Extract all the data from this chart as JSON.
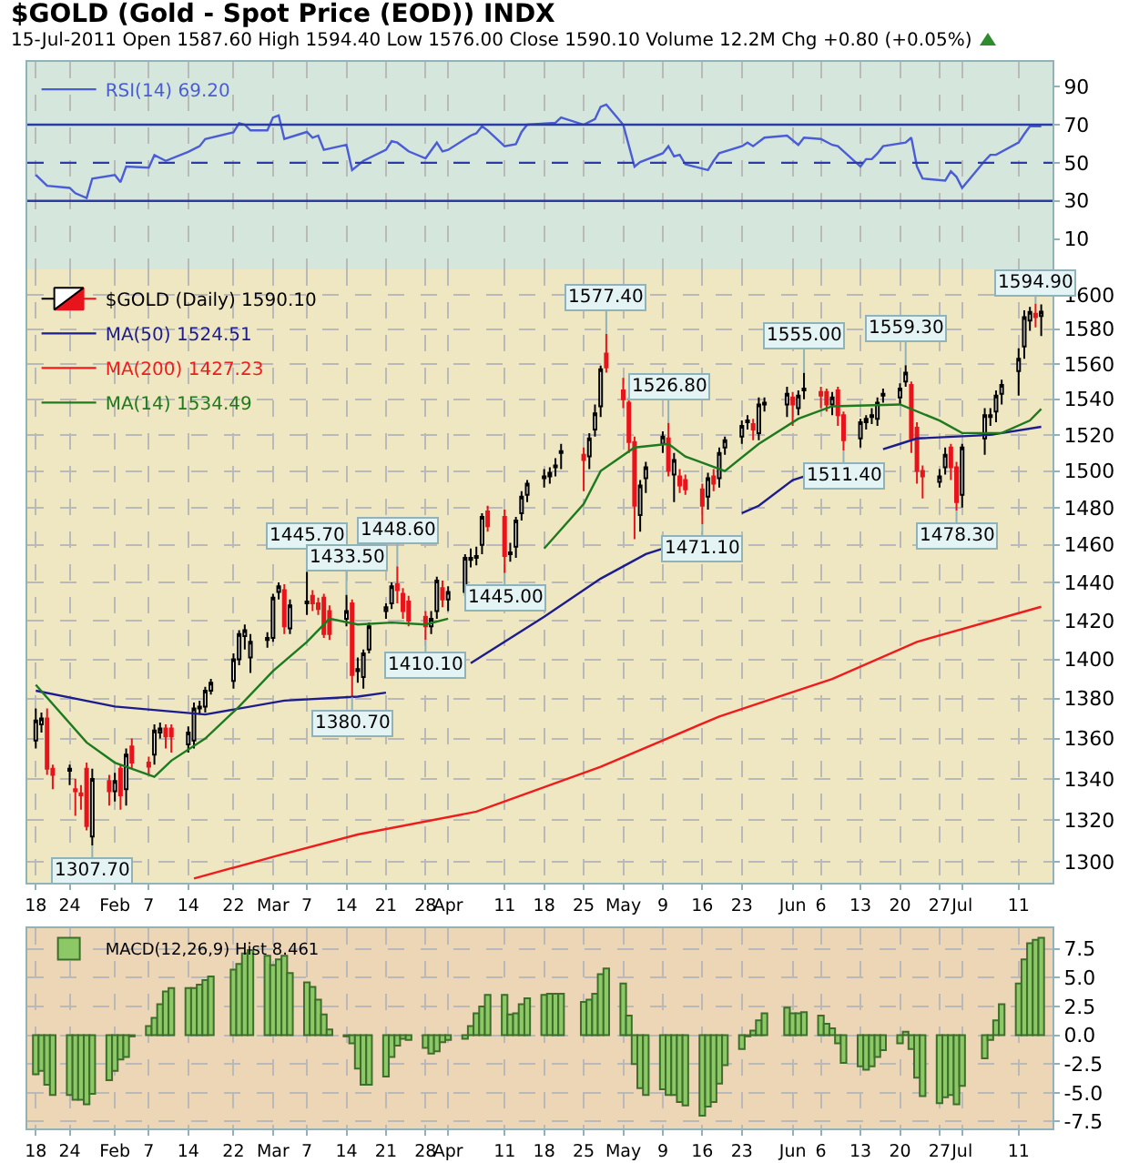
{
  "chart_data": [
    {
      "type": "line",
      "title": "$GOLD (Gold - Spot Price (EOD)) INDX",
      "subtitle": "15-Jul-2011 Open 1587.60 High 1594.40 Low 1576.00 Close 1590.10 Volume 12.2M Chg +0.80 (+0.05%)",
      "x": [
        "2011-01-18",
        "2011-01-20",
        "2011-01-24",
        "2011-01-25",
        "2011-01-27",
        "2011-01-28",
        "2011-02-01",
        "2011-02-02",
        "2011-02-03",
        "2011-02-07",
        "2011-02-08",
        "2011-02-10",
        "2011-02-14",
        "2011-02-16",
        "2011-02-17",
        "2011-02-22",
        "2011-02-23",
        "2011-02-24",
        "2011-02-25",
        "2011-02-28",
        "2011-03-01",
        "2011-03-02",
        "2011-03-03",
        "2011-03-07",
        "2011-03-08",
        "2011-03-09",
        "2011-03-10",
        "2011-03-14",
        "2011-03-15",
        "2011-03-17",
        "2011-03-21",
        "2011-03-22",
        "2011-03-23",
        "2011-03-25",
        "2011-03-28",
        "2011-03-30",
        "2011-03-31",
        "2011-04-01",
        "2011-04-05",
        "2011-04-06",
        "2011-04-07",
        "2011-04-08",
        "2011-04-11",
        "2011-04-13",
        "2011-04-14",
        "2011-04-15",
        "2011-04-20",
        "2011-04-21",
        "2011-04-25",
        "2011-04-27",
        "2011-04-28",
        "2011-04-29",
        "2011-05-02",
        "2011-05-04",
        "2011-05-05",
        "2011-05-09",
        "2011-05-10",
        "2011-05-11",
        "2011-05-12",
        "2011-05-13",
        "2011-05-17",
        "2011-05-18",
        "2011-05-19",
        "2011-05-23",
        "2011-05-24",
        "2011-05-25",
        "2011-05-27",
        "2011-05-31",
        "2011-06-02",
        "2011-06-03",
        "2011-06-06",
        "2011-06-08",
        "2011-06-09",
        "2011-06-13",
        "2011-06-14",
        "2011-06-15",
        "2011-06-16",
        "2011-06-17",
        "2011-06-21",
        "2011-06-22",
        "2011-06-23",
        "2011-06-24",
        "2011-06-28",
        "2011-06-29",
        "2011-06-30",
        "2011-07-01",
        "2011-07-05",
        "2011-07-06",
        "2011-07-07",
        "2011-07-11",
        "2011-07-12",
        "2011-07-13",
        "2011-07-15"
      ],
      "series": [
        {
          "name": "RSI(14) 69.20",
          "color": "#4a5cd6",
          "values": [
            43.6,
            37.9,
            36.8,
            34,
            31.5,
            41.7,
            43.6,
            39.8,
            48,
            47.4,
            54,
            51,
            55.7,
            58.7,
            62.5,
            66,
            70.8,
            70,
            67,
            67,
            73.8,
            74.9,
            62.5,
            66.2,
            63.2,
            64.3,
            56.8,
            59.4,
            46.2,
            51,
            56.8,
            61.3,
            60.6,
            56,
            52.3,
            60.6,
            56,
            56.8,
            64.3,
            65.5,
            69.2,
            67,
            58.7,
            59.8,
            66.2,
            70,
            71,
            73.8,
            70,
            73,
            79.4,
            80.6,
            70,
            48,
            50.4,
            55,
            58.7,
            53.4,
            54.2,
            49.2,
            46.2,
            51,
            55,
            58.7,
            60.6,
            58.7,
            63.2,
            64.3,
            59.4,
            63.2,
            62.5,
            59.4,
            58.7,
            48,
            51.9,
            51.9,
            54.9,
            58.7,
            60.6,
            63.2,
            48,
            41.7,
            40.6,
            45.5,
            42.6,
            36.8,
            51,
            54.2,
            54.2,
            60.6,
            65.1,
            69.2,
            69.2
          ]
        }
      ],
      "xlim": [
        "2011-01-16T12:00",
        "2011-07-17"
      ],
      "xticks": [
        {
          "value": "2011-01-18",
          "label": null
        },
        {
          "value": "2011-01-24",
          "label": null
        },
        {
          "value": "2011-02-01",
          "label": null
        },
        {
          "value": "2011-02-07",
          "label": null
        },
        {
          "value": "2011-02-14",
          "label": null
        },
        {
          "value": "2011-02-22",
          "label": null
        },
        {
          "value": "2011-03-01",
          "label": null
        },
        {
          "value": "2011-03-07",
          "label": null
        },
        {
          "value": "2011-03-14",
          "label": null
        },
        {
          "value": "2011-03-21",
          "label": null
        },
        {
          "value": "2011-03-28",
          "label": null
        },
        {
          "value": "2011-04-01",
          "label": null
        },
        {
          "value": "2011-04-11",
          "label": null
        },
        {
          "value": "2011-04-18",
          "label": null
        },
        {
          "value": "2011-04-25",
          "label": null
        },
        {
          "value": "2011-05-02",
          "label": null
        },
        {
          "value": "2011-05-09",
          "label": null
        },
        {
          "value": "2011-05-16",
          "label": null
        },
        {
          "value": "2011-05-23",
          "label": null
        },
        {
          "value": "2011-06-01",
          "label": null
        },
        {
          "value": "2011-06-06",
          "label": null
        },
        {
          "value": "2011-06-13",
          "label": null
        },
        {
          "value": "2011-06-20",
          "label": null
        },
        {
          "value": "2011-06-27",
          "label": null
        },
        {
          "value": "2011-07-01",
          "label": null
        },
        {
          "value": "2011-07-11",
          "label": null
        }
      ],
      "ylim": [
        -6,
        103
      ],
      "yticks": [
        10,
        30,
        50,
        70,
        90
      ],
      "ref_lines": [
        {
          "axis": "y",
          "value": 70,
          "color": "#2b3aa8"
        },
        {
          "axis": "y",
          "value": 50,
          "color": "#2b3aa8",
          "line_style": "dashed"
        },
        {
          "axis": "y",
          "value": 30,
          "color": "#2b3aa8"
        }
      ],
      "grid": "x",
      "legend": "top left",
      "tick_labels": "y"
    },
    {
      "type": "candlestick",
      "x": [
        "2011-01-18",
        "2011-01-19",
        "2011-01-20",
        "2011-01-21",
        "2011-01-24",
        "2011-01-25",
        "2011-01-26",
        "2011-01-27",
        "2011-01-28",
        "2011-01-31",
        "2011-02-01",
        "2011-02-02",
        "2011-02-03",
        "2011-02-04",
        "2011-02-07",
        "2011-02-08",
        "2011-02-09",
        "2011-02-10",
        "2011-02-11",
        "2011-02-14",
        "2011-02-15",
        "2011-02-16",
        "2011-02-17",
        "2011-02-18",
        "2011-02-22",
        "2011-02-23",
        "2011-02-24",
        "2011-02-25",
        "2011-02-28",
        "2011-03-01",
        "2011-03-02",
        "2011-03-03",
        "2011-03-04",
        "2011-03-07",
        "2011-03-08",
        "2011-03-09",
        "2011-03-10",
        "2011-03-11",
        "2011-03-14",
        "2011-03-15",
        "2011-03-16",
        "2011-03-17",
        "2011-03-18",
        "2011-03-21",
        "2011-03-22",
        "2011-03-23",
        "2011-03-24",
        "2011-03-25",
        "2011-03-28",
        "2011-03-29",
        "2011-03-30",
        "2011-03-31",
        "2011-04-01",
        "2011-04-04",
        "2011-04-05",
        "2011-04-06",
        "2011-04-07",
        "2011-04-08",
        "2011-04-11",
        "2011-04-12",
        "2011-04-13",
        "2011-04-14",
        "2011-04-15",
        "2011-04-18",
        "2011-04-19",
        "2011-04-20",
        "2011-04-21",
        "2011-04-25",
        "2011-04-26",
        "2011-04-27",
        "2011-04-28",
        "2011-04-29",
        "2011-05-02",
        "2011-05-03",
        "2011-05-04",
        "2011-05-05",
        "2011-05-06",
        "2011-05-09",
        "2011-05-10",
        "2011-05-11",
        "2011-05-12",
        "2011-05-13",
        "2011-05-16",
        "2011-05-17",
        "2011-05-18",
        "2011-05-19",
        "2011-05-20",
        "2011-05-23",
        "2011-05-24",
        "2011-05-25",
        "2011-05-26",
        "2011-05-27",
        "2011-05-31",
        "2011-06-01",
        "2011-06-02",
        "2011-06-03",
        "2011-06-06",
        "2011-06-07",
        "2011-06-08",
        "2011-06-09",
        "2011-06-10",
        "2011-06-13",
        "2011-06-14",
        "2011-06-15",
        "2011-06-16",
        "2011-06-17",
        "2011-06-20",
        "2011-06-21",
        "2011-06-22",
        "2011-06-23",
        "2011-06-24",
        "2011-06-27",
        "2011-06-28",
        "2011-06-29",
        "2011-06-30",
        "2011-07-01",
        "2011-07-05",
        "2011-07-06",
        "2011-07-07",
        "2011-07-08",
        "2011-07-11",
        "2011-07-12",
        "2011-07-13",
        "2011-07-14",
        "2011-07-15"
      ],
      "series": [
        {
          "name": "$GOLD (Daily) 1590.10",
          "ohlc": [
            [
              1359,
              1375,
              1355,
              1369
            ],
            [
              1367,
              1373,
              1363,
              1370
            ],
            [
              1370,
              1375,
              1342,
              1345
            ],
            [
              1345,
              1347,
              1335,
              1342
            ],
            [
              1344,
              1347,
              1337,
              1345
            ],
            [
              1335,
              1340,
              1322,
              1334
            ],
            [
              1333,
              1337,
              1325,
              1332
            ],
            [
              1345,
              1348,
              1315,
              1317
            ],
            [
              1312,
              1345,
              1307.7,
              1340
            ],
            [
              1339,
              1342,
              1327,
              1334
            ],
            [
              1334,
              1343,
              1329,
              1339
            ],
            [
              1345,
              1347,
              1325,
              1332
            ],
            [
              1335,
              1355,
              1327,
              1352
            ],
            [
              1356,
              1360,
              1345,
              1348
            ],
            [
              1348,
              1351,
              1342,
              1346
            ],
            [
              1352,
              1367,
              1347,
              1364
            ],
            [
              1363,
              1368,
              1360,
              1365
            ],
            [
              1365,
              1367,
              1355,
              1361
            ],
            [
              1365,
              1367,
              1353,
              1361
            ],
            [
              1357,
              1366,
              1353,
              1363
            ],
            [
              1359,
              1378,
              1355,
              1375
            ],
            [
              1375,
              1379,
              1372,
              1376
            ],
            [
              1376,
              1386,
              1373,
              1384
            ],
            [
              1384,
              1390,
              1382,
              1388
            ],
            [
              1389,
              1403,
              1385,
              1400
            ],
            [
              1400,
              1415,
              1397,
              1413
            ],
            [
              1412,
              1418,
              1405,
              1415
            ],
            [
              1401,
              1413,
              1393,
              1409
            ],
            [
              1410,
              1414,
              1406,
              1411
            ],
            [
              1411,
              1434,
              1409,
              1432
            ],
            [
              1435,
              1440,
              1431,
              1438
            ],
            [
              1436,
              1439,
              1413,
              1417
            ],
            [
              1416,
              1431,
              1413,
              1428
            ],
            [
              1429,
              1445.7,
              1423,
              1430
            ],
            [
              1433,
              1436,
              1425,
              1429
            ],
            [
              1429,
              1432,
              1423,
              1426
            ],
            [
              1432,
              1434,
              1411,
              1413
            ],
            [
              1425,
              1428,
              1410,
              1413
            ],
            [
              1421,
              1433.5,
              1417,
              1425
            ],
            [
              1429,
              1431,
              1380.7,
              1392
            ],
            [
              1394,
              1401,
              1388,
              1395
            ],
            [
              1391,
              1405,
              1385,
              1403
            ],
            [
              1405,
              1419,
              1403,
              1417
            ],
            [
              1425,
              1429,
              1421,
              1427
            ],
            [
              1429,
              1440,
              1426,
              1438
            ],
            [
              1439,
              1448.6,
              1429,
              1436
            ],
            [
              1434,
              1437,
              1421,
              1425
            ],
            [
              1430,
              1433,
              1417,
              1420
            ],
            [
              1422,
              1425,
              1410.1,
              1417
            ],
            [
              1417,
              1425,
              1413,
              1421
            ],
            [
              1425,
              1443,
              1421,
              1441
            ],
            [
              1437,
              1441,
              1427,
              1431
            ],
            [
              1431,
              1438,
              1425,
              1435
            ],
            [
              1435,
              1455,
              1433,
              1453
            ],
            [
              1452,
              1458,
              1448,
              1453
            ],
            [
              1453,
              1459,
              1449,
              1454
            ],
            [
              1460,
              1477,
              1455,
              1475
            ],
            [
              1478,
              1481,
              1467,
              1470
            ],
            [
              1475,
              1479,
              1445,
              1454
            ],
            [
              1455,
              1461,
              1451,
              1456
            ],
            [
              1459,
              1475,
              1453,
              1473
            ],
            [
              1477,
              1489,
              1473,
              1486
            ],
            [
              1487,
              1495,
              1483,
              1493
            ],
            [
              1496,
              1501,
              1491,
              1497
            ],
            [
              1497,
              1502,
              1493,
              1499
            ],
            [
              1502,
              1507,
              1497,
              1503
            ],
            [
              1510,
              1515,
              1501,
              1511
            ],
            [
              1509,
              1513,
              1489,
              1506
            ],
            [
              1508,
              1521,
              1501,
              1518
            ],
            [
              1523,
              1537,
              1519,
              1532
            ],
            [
              1536,
              1559,
              1530,
              1557
            ],
            [
              1566,
              1577.4,
              1555,
              1558
            ],
            [
              1545,
              1552,
              1535,
              1540
            ],
            [
              1538,
              1541,
              1510,
              1516
            ],
            [
              1516,
              1519,
              1463,
              1481
            ],
            [
              1476,
              1495,
              1467,
              1492
            ],
            [
              1496,
              1505,
              1488,
              1502
            ],
            [
              1515,
              1522,
              1510,
              1519
            ],
            [
              1518,
              1526.8,
              1497,
              1500
            ],
            [
              1498,
              1510,
              1483,
              1506
            ],
            [
              1497,
              1501,
              1488,
              1492
            ],
            [
              1495,
              1498,
              1487,
              1490
            ],
            [
              1490,
              1493,
              1471.1,
              1481
            ],
            [
              1486,
              1499,
              1479,
              1496
            ],
            [
              1497,
              1501,
              1489,
              1493
            ],
            [
              1496,
              1513,
              1491,
              1510
            ],
            [
              1513,
              1519,
              1509,
              1517
            ],
            [
              1519,
              1528,
              1515,
              1525
            ],
            [
              1527,
              1531,
              1523,
              1528
            ],
            [
              1526,
              1529,
              1517,
              1523
            ],
            [
              1521,
              1541,
              1517,
              1537
            ],
            [
              1537,
              1541,
              1533,
              1538
            ],
            [
              1537,
              1547,
              1530,
              1543
            ],
            [
              1541,
              1544,
              1525,
              1537
            ],
            [
              1535,
              1545,
              1531,
              1542
            ],
            [
              1545,
              1555,
              1540,
              1546
            ],
            [
              1544,
              1547,
              1535,
              1542
            ],
            [
              1544,
              1546,
              1533,
              1537
            ],
            [
              1537,
              1544,
              1531,
              1541
            ],
            [
              1545,
              1547,
              1525,
              1531
            ],
            [
              1531,
              1533,
              1511.4,
              1517
            ],
            [
              1518,
              1529,
              1513,
              1527
            ],
            [
              1527,
              1531,
              1523,
              1529
            ],
            [
              1530,
              1535,
              1526,
              1531
            ],
            [
              1529,
              1541,
              1525,
              1538
            ],
            [
              1542,
              1546,
              1538,
              1543
            ],
            [
              1541,
              1549,
              1537,
              1546
            ],
            [
              1550,
              1559.3,
              1547,
              1555
            ],
            [
              1548,
              1550,
              1510,
              1518
            ],
            [
              1524,
              1527,
              1493,
              1500
            ],
            [
              1500,
              1503,
              1485,
              1497
            ],
            [
              1494,
              1501,
              1491,
              1497
            ],
            [
              1502,
              1513,
              1498,
              1509
            ],
            [
              1513,
              1515,
              1495,
              1502
            ],
            [
              1502,
              1505,
              1478.3,
              1483
            ],
            [
              1487,
              1515,
              1480,
              1513
            ],
            [
              1518,
              1535,
              1509,
              1531
            ],
            [
              1530,
              1535,
              1525,
              1531
            ],
            [
              1533,
              1545,
              1527,
              1542
            ],
            [
              1543,
              1551,
              1537,
              1548
            ],
            [
              1556,
              1569,
              1542,
              1563
            ],
            [
              1570,
              1591,
              1563,
              1587
            ],
            [
              1585,
              1593,
              1579,
              1590
            ],
            [
              1589,
              1594.9,
              1581,
              1587
            ],
            [
              1587.6,
              1594.4,
              1576,
              1590.1
            ]
          ]
        },
        {
          "name": "MA(50) 1524.51",
          "type": "line",
          "color": "#1c1c8e",
          "x": [
            "2011-01-18",
            "2011-02-01",
            "2011-02-17",
            "2011-03-03",
            "2011-03-16",
            "2011-03-21",
            "2011-03-28",
            "2011-04-05",
            "2011-04-18",
            "2011-04-28",
            "2011-05-06",
            "2011-05-09",
            "2011-05-16",
            "2011-05-23",
            "2011-05-26",
            "2011-06-01",
            "2011-06-03",
            "2011-06-10",
            "2011-06-17",
            "2011-06-20",
            "2011-06-23",
            "2011-07-06",
            "2011-07-15"
          ],
          "values": [
            1384,
            1376,
            1372,
            1379,
            1381,
            1383,
            null,
            1398,
            1422,
            1442,
            1455,
            1458,
            null,
            1477,
            1481,
            1495,
            1497,
            null,
            1512,
            1515,
            1518,
            1520,
            1524.51
          ]
        },
        {
          "name": "MA(200) 1427.23",
          "type": "line",
          "color": "#f01c1c",
          "x": [
            "2011-02-15",
            "2011-03-02",
            "2011-03-16",
            "2011-04-06",
            "2011-04-28",
            "2011-05-19",
            "2011-06-08",
            "2011-06-23",
            "2011-07-15"
          ],
          "values": [
            1292,
            1303,
            1313,
            1324,
            1346,
            1371,
            1390,
            1409,
            1427.23
          ]
        },
        {
          "name": "MA(14) 1534.49",
          "type": "line",
          "color": "#1e7a1e",
          "x": [
            "2011-01-18",
            "2011-01-27",
            "2011-02-01",
            "2011-02-08",
            "2011-02-11",
            "2011-02-17",
            "2011-02-23",
            "2011-03-01",
            "2011-03-07",
            "2011-03-11",
            "2011-03-16",
            "2011-03-22",
            "2011-03-28",
            "2011-04-01",
            "2011-04-11",
            "2011-04-18",
            "2011-04-25",
            "2011-04-28",
            "2011-05-04",
            "2011-05-10",
            "2011-05-13",
            "2011-05-20",
            "2011-05-26",
            "2011-06-02",
            "2011-06-08",
            "2011-06-20",
            "2011-06-27",
            "2011-07-01",
            "2011-07-08",
            "2011-07-13",
            "2011-07-15"
          ],
          "values": [
            1387,
            1358,
            1348,
            1341,
            1349,
            1360,
            1376,
            1394,
            1409,
            1421,
            1418,
            1419,
            1418,
            1421,
            null,
            1458,
            1482,
            1500,
            1513,
            1515,
            1508,
            1500,
            1515,
            1529,
            1536,
            1537,
            1528,
            1521,
            1521,
            1528,
            1534.49
          ]
        }
      ],
      "annotations": [
        {
          "text": "1307.70",
          "x": "2011-01-28",
          "y": 1307.7
        },
        {
          "text": "1445.70",
          "x": "2011-03-07",
          "y": 1445.7
        },
        {
          "text": "1433.50",
          "x": "2011-03-14",
          "y": 1433.5
        },
        {
          "text": "1380.70",
          "x": "2011-03-15",
          "y": 1380.7
        },
        {
          "text": "1448.60",
          "x": "2011-03-23",
          "y": 1448.6
        },
        {
          "text": "1410.10",
          "x": "2011-03-28",
          "y": 1410.1
        },
        {
          "text": "1445.00",
          "x": "2011-04-11",
          "y": 1445
        },
        {
          "text": "1577.40",
          "x": "2011-04-29",
          "y": 1577.4
        },
        {
          "text": "1526.80",
          "x": "2011-05-10",
          "y": 1526.8
        },
        {
          "text": "1471.10",
          "x": "2011-05-16",
          "y": 1471.1
        },
        {
          "text": "1555.00",
          "x": "2011-06-03",
          "y": 1555
        },
        {
          "text": "1511.40",
          "x": "2011-06-10",
          "y": 1511.4
        },
        {
          "text": "1559.30",
          "x": "2011-06-21",
          "y": 1559.3
        },
        {
          "text": "1478.30",
          "x": "2011-06-30",
          "y": 1478.3
        },
        {
          "text": "1594.90",
          "x": "2011-07-14",
          "y": 1594.9
        }
      ],
      "xlim": [
        "2011-01-16T12:00",
        "2011-07-17"
      ],
      "xticks": [
        {
          "value": "2011-01-18",
          "label": "18"
        },
        {
          "value": "2011-01-24",
          "label": "24"
        },
        {
          "value": "2011-02-01",
          "label": "Feb"
        },
        {
          "value": "2011-02-07",
          "label": "7"
        },
        {
          "value": "2011-02-14",
          "label": "14"
        },
        {
          "value": "2011-02-22",
          "label": "22"
        },
        {
          "value": "2011-03-01",
          "label": "Mar"
        },
        {
          "value": "2011-03-07",
          "label": "7"
        },
        {
          "value": "2011-03-14",
          "label": "14"
        },
        {
          "value": "2011-03-21",
          "label": "21"
        },
        {
          "value": "2011-03-28",
          "label": "28"
        },
        {
          "value": "2011-04-01",
          "label": "Apr"
        },
        {
          "value": "2011-04-11",
          "label": "11"
        },
        {
          "value": "2011-04-18",
          "label": "18"
        },
        {
          "value": "2011-04-25",
          "label": "25"
        },
        {
          "value": "2011-05-02",
          "label": "May"
        },
        {
          "value": "2011-05-09",
          "label": "9"
        },
        {
          "value": "2011-05-16",
          "label": "16"
        },
        {
          "value": "2011-05-23",
          "label": "23"
        },
        {
          "value": "2011-06-01",
          "label": "Jun"
        },
        {
          "value": "2011-06-06",
          "label": "6"
        },
        {
          "value": "2011-06-13",
          "label": "13"
        },
        {
          "value": "2011-06-20",
          "label": "20"
        },
        {
          "value": "2011-06-27",
          "label": "27"
        },
        {
          "value": "2011-07-01",
          "label": "Jul"
        },
        {
          "value": "2011-07-11",
          "label": "11"
        }
      ],
      "ylim": [
        1290,
        1615
      ],
      "yticks": [
        1300,
        1320,
        1340,
        1360,
        1380,
        1400,
        1420,
        1440,
        1460,
        1480,
        1500,
        1520,
        1540,
        1560,
        1580,
        1600
      ],
      "log": true,
      "grid": true,
      "legend": "top left"
    },
    {
      "type": "bar",
      "x": [
        "2011-01-18",
        "2011-01-19",
        "2011-01-20",
        "2011-01-21",
        "2011-01-24",
        "2011-01-25",
        "2011-01-26",
        "2011-01-27",
        "2011-01-28",
        "2011-01-31",
        "2011-02-01",
        "2011-02-02",
        "2011-02-03",
        "2011-02-04",
        "2011-02-07",
        "2011-02-08",
        "2011-02-09",
        "2011-02-10",
        "2011-02-11",
        "2011-02-14",
        "2011-02-15",
        "2011-02-16",
        "2011-02-17",
        "2011-02-18",
        "2011-02-22",
        "2011-02-23",
        "2011-02-24",
        "2011-02-25",
        "2011-02-28",
        "2011-03-01",
        "2011-03-02",
        "2011-03-03",
        "2011-03-04",
        "2011-03-07",
        "2011-03-08",
        "2011-03-09",
        "2011-03-10",
        "2011-03-11",
        "2011-03-14",
        "2011-03-15",
        "2011-03-16",
        "2011-03-17",
        "2011-03-18",
        "2011-03-21",
        "2011-03-22",
        "2011-03-23",
        "2011-03-24",
        "2011-03-25",
        "2011-03-28",
        "2011-03-29",
        "2011-03-30",
        "2011-03-31",
        "2011-04-01",
        "2011-04-04",
        "2011-04-05",
        "2011-04-06",
        "2011-04-07",
        "2011-04-08",
        "2011-04-11",
        "2011-04-12",
        "2011-04-13",
        "2011-04-14",
        "2011-04-15",
        "2011-04-18",
        "2011-04-19",
        "2011-04-20",
        "2011-04-21",
        "2011-04-25",
        "2011-04-26",
        "2011-04-27",
        "2011-04-28",
        "2011-04-29",
        "2011-05-02",
        "2011-05-03",
        "2011-05-04",
        "2011-05-05",
        "2011-05-06",
        "2011-05-09",
        "2011-05-10",
        "2011-05-11",
        "2011-05-12",
        "2011-05-13",
        "2011-05-16",
        "2011-05-17",
        "2011-05-18",
        "2011-05-19",
        "2011-05-20",
        "2011-05-23",
        "2011-05-24",
        "2011-05-25",
        "2011-05-26",
        "2011-05-27",
        "2011-05-31",
        "2011-06-01",
        "2011-06-02",
        "2011-06-03",
        "2011-06-06",
        "2011-06-07",
        "2011-06-08",
        "2011-06-09",
        "2011-06-10",
        "2011-06-13",
        "2011-06-14",
        "2011-06-15",
        "2011-06-16",
        "2011-06-17",
        "2011-06-20",
        "2011-06-21",
        "2011-06-22",
        "2011-06-23",
        "2011-06-24",
        "2011-06-27",
        "2011-06-28",
        "2011-06-29",
        "2011-06-30",
        "2011-07-01",
        "2011-07-05",
        "2011-07-06",
        "2011-07-07",
        "2011-07-08",
        "2011-07-11",
        "2011-07-12",
        "2011-07-13",
        "2011-07-14",
        "2011-07-15"
      ],
      "series": [
        {
          "name": "MACD(12,26,9) Hist 8.461",
          "color": "#8cc866",
          "values": [
            -3.4,
            -3.1,
            -4.3,
            -5.2,
            -5.2,
            -5.6,
            -5.6,
            -6.0,
            -5.1,
            -3.9,
            -3.1,
            -2.1,
            -1.9,
            -0.1,
            0.8,
            1.5,
            2.7,
            3.8,
            4.1,
            4.1,
            4.1,
            4.4,
            4.8,
            5.1,
            5.7,
            6.2,
            7.1,
            7.4,
            6.9,
            6.1,
            6.6,
            6.9,
            5.4,
            4.6,
            4.2,
            3.1,
            1.8,
            0.5,
            -0.1,
            -0.7,
            -2.9,
            -4.3,
            -4.3,
            -3.6,
            -1.9,
            -0.9,
            -0.3,
            -0.4,
            -1.1,
            -1.6,
            -1.4,
            -0.6,
            -0.4,
            -0.3,
            0.8,
            1.9,
            2.5,
            3.5,
            3.5,
            1.8,
            1.9,
            2.7,
            3.2,
            3.5,
            3.6,
            3.6,
            3.6,
            2.9,
            3.1,
            3.6,
            5.3,
            5.8,
            4.5,
            1.7,
            -2.5,
            -4.6,
            -5.2,
            -4.7,
            -5.2,
            -5.2,
            -5.8,
            -6.1,
            -7.0,
            -6.2,
            -5.8,
            -4.2,
            -2.6,
            -1.2,
            -0.1,
            0.4,
            1.3,
            1.9,
            2.4,
            1.9,
            1.9,
            2.0,
            1.7,
            1.0,
            0.6,
            -0.7,
            -2.4,
            -2.7,
            -3.0,
            -2.7,
            -1.9,
            -1.3,
            -0.7,
            0.3,
            -1.2,
            -3.7,
            -5.3,
            -5.9,
            -5.4,
            -5.2,
            -6.0,
            -4.4,
            -2.0,
            -0.4,
            1.3,
            2.7,
            4.5,
            6.6,
            8.0,
            8.3,
            8.461
          ]
        }
      ],
      "xlim": [
        "2011-01-16T12:00",
        "2011-07-17"
      ],
      "xticks": [
        {
          "value": "2011-01-18",
          "label": "18"
        },
        {
          "value": "2011-01-24",
          "label": "24"
        },
        {
          "value": "2011-02-01",
          "label": "Feb"
        },
        {
          "value": "2011-02-07",
          "label": "7"
        },
        {
          "value": "2011-02-14",
          "label": "14"
        },
        {
          "value": "2011-02-22",
          "label": "22"
        },
        {
          "value": "2011-03-01",
          "label": "Mar"
        },
        {
          "value": "2011-03-07",
          "label": "7"
        },
        {
          "value": "2011-03-14",
          "label": "14"
        },
        {
          "value": "2011-03-21",
          "label": "21"
        },
        {
          "value": "2011-03-28",
          "label": "28"
        },
        {
          "value": "2011-04-01",
          "label": "Apr"
        },
        {
          "value": "2011-04-11",
          "label": "11"
        },
        {
          "value": "2011-04-18",
          "label": "18"
        },
        {
          "value": "2011-04-25",
          "label": "25"
        },
        {
          "value": "2011-05-02",
          "label": "May"
        },
        {
          "value": "2011-05-09",
          "label": "9"
        },
        {
          "value": "2011-05-16",
          "label": "16"
        },
        {
          "value": "2011-05-23",
          "label": "23"
        },
        {
          "value": "2011-06-01",
          "label": "Jun"
        },
        {
          "value": "2011-06-06",
          "label": "6"
        },
        {
          "value": "2011-06-13",
          "label": "13"
        },
        {
          "value": "2011-06-20",
          "label": "20"
        },
        {
          "value": "2011-06-27",
          "label": "27"
        },
        {
          "value": "2011-07-01",
          "label": "Jul"
        },
        {
          "value": "2011-07-11",
          "label": "11"
        }
      ],
      "ylim": [
        -8.1,
        9.3
      ],
      "yticks": [
        7.5,
        {
          "value": 5,
          "label": "5.0"
        },
        2.5,
        {
          "value": 0,
          "label": "0.0"
        },
        -2.5,
        {
          "value": -5,
          "label": "-5.0"
        },
        -7.5
      ],
      "grid": true,
      "legend": "top left"
    }
  ]
}
